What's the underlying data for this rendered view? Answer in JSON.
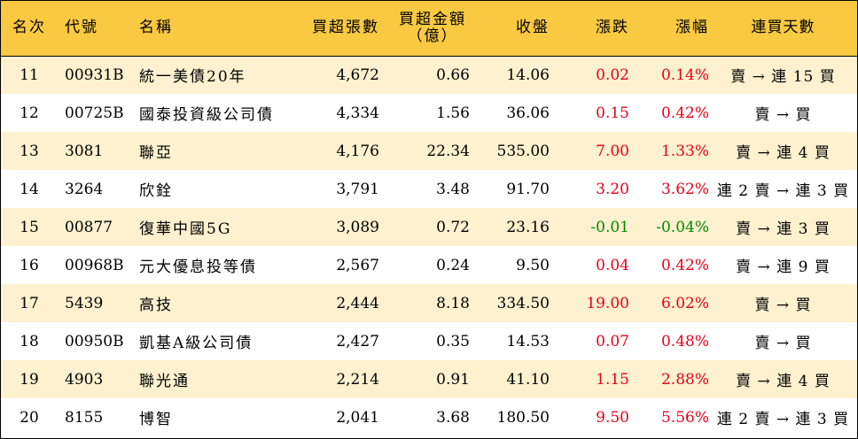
{
  "header": {
    "rank": "名次",
    "code": "代號",
    "name": "名稱",
    "net_buy_lots": "買超張數",
    "net_buy_amount_line1": "買超金額",
    "net_buy_amount_line2": "（億）",
    "close": "收盤",
    "change": "漲跌",
    "pct_change": "漲幅",
    "consecutive_days": "連買天數"
  },
  "colors": {
    "header_bg": "#f9c941",
    "stripe_bg": "#fdf1cf",
    "up": "#e8001c",
    "down": "#008a00"
  },
  "rows": [
    {
      "rank": "11",
      "code": "00931B",
      "name": "統一美債20年",
      "lots": "4,672",
      "amount": "0.66",
      "close": "14.06",
      "change": "0.02",
      "pct": "0.14%",
      "days": "賣 → 連 15 買",
      "dir": "up"
    },
    {
      "rank": "12",
      "code": "00725B",
      "name": "國泰投資級公司債",
      "lots": "4,334",
      "amount": "1.56",
      "close": "36.06",
      "change": "0.15",
      "pct": "0.42%",
      "days": "賣 → 買",
      "dir": "up"
    },
    {
      "rank": "13",
      "code": "3081",
      "name": "聯亞",
      "lots": "4,176",
      "amount": "22.34",
      "close": "535.00",
      "change": "7.00",
      "pct": "1.33%",
      "days": "賣 → 連 4 買",
      "dir": "up"
    },
    {
      "rank": "14",
      "code": "3264",
      "name": "欣銓",
      "lots": "3,791",
      "amount": "3.48",
      "close": "91.70",
      "change": "3.20",
      "pct": "3.62%",
      "days": "連 2 賣 → 連 3 買",
      "dir": "up"
    },
    {
      "rank": "15",
      "code": "00877",
      "name": "復華中國5G",
      "lots": "3,089",
      "amount": "0.72",
      "close": "23.16",
      "change": "-0.01",
      "pct": "-0.04%",
      "days": "賣 → 連 3 買",
      "dir": "down"
    },
    {
      "rank": "16",
      "code": "00968B",
      "name": "元大優息投等債",
      "lots": "2,567",
      "amount": "0.24",
      "close": "9.50",
      "change": "0.04",
      "pct": "0.42%",
      "days": "賣 → 連 9 買",
      "dir": "up"
    },
    {
      "rank": "17",
      "code": "5439",
      "name": "高技",
      "lots": "2,444",
      "amount": "8.18",
      "close": "334.50",
      "change": "19.00",
      "pct": "6.02%",
      "days": "賣 → 買",
      "dir": "up"
    },
    {
      "rank": "18",
      "code": "00950B",
      "name": "凱基A級公司債",
      "lots": "2,427",
      "amount": "0.35",
      "close": "14.53",
      "change": "0.07",
      "pct": "0.48%",
      "days": "賣 → 買",
      "dir": "up"
    },
    {
      "rank": "19",
      "code": "4903",
      "name": "聯光通",
      "lots": "2,214",
      "amount": "0.91",
      "close": "41.10",
      "change": "1.15",
      "pct": "2.88%",
      "days": "賣 → 連 4 買",
      "dir": "up"
    },
    {
      "rank": "20",
      "code": "8155",
      "name": "博智",
      "lots": "2,041",
      "amount": "3.68",
      "close": "180.50",
      "change": "9.50",
      "pct": "5.56%",
      "days": "連 2 賣 → 連 3 買",
      "dir": "up"
    }
  ]
}
